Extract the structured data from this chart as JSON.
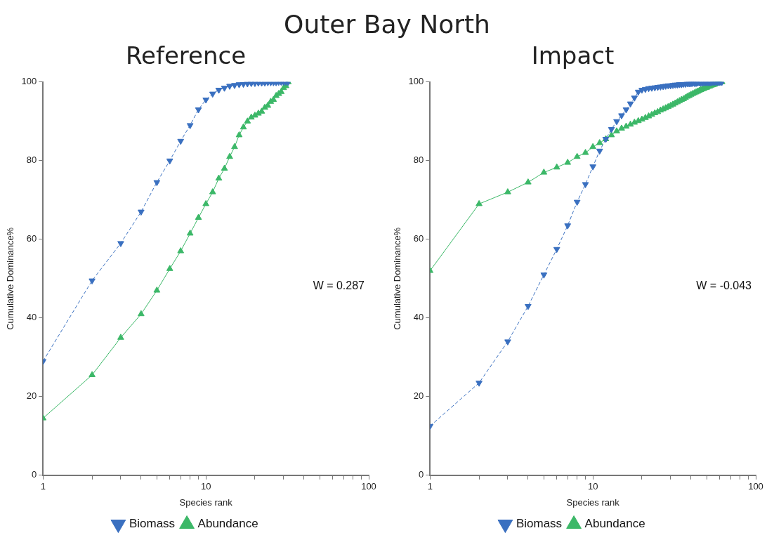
{
  "chart_data": [
    {
      "type": "line",
      "title": "Outer Bay North",
      "subtitle": "Reference",
      "xlabel": "Species rank",
      "ylabel": "Cumulative Dominance%",
      "log": "x",
      "grid": false,
      "legend": "bottom",
      "xlim": [
        1,
        100
      ],
      "xticks": [
        1,
        {
          "value": 2,
          "label": null
        },
        {
          "value": 3,
          "label": null
        },
        {
          "value": 4,
          "label": null
        },
        {
          "value": 5,
          "label": null
        },
        {
          "value": 6,
          "label": null
        },
        {
          "value": 7,
          "label": null
        },
        {
          "value": 8,
          "label": null
        },
        {
          "value": 9,
          "label": null
        },
        10,
        {
          "value": 20,
          "label": null
        },
        {
          "value": 30,
          "label": null
        },
        {
          "value": 40,
          "label": null
        },
        {
          "value": 50,
          "label": null
        },
        {
          "value": 60,
          "label": null
        },
        {
          "value": 70,
          "label": null
        },
        {
          "value": 80,
          "label": null
        },
        {
          "value": 90,
          "label": null
        },
        100
      ],
      "ylim": [
        0,
        100
      ],
      "yticks": [
        0,
        20,
        40,
        60,
        80,
        100
      ],
      "annotations": [
        "W = 0.287"
      ],
      "x": [
        1,
        2,
        3,
        4,
        5,
        6,
        7,
        8,
        9,
        10,
        11,
        12,
        13,
        14,
        15,
        16,
        17,
        18,
        19,
        20,
        21,
        22,
        23,
        24,
        25,
        26,
        27,
        28,
        29,
        30,
        31,
        32
      ],
      "series": [
        {
          "name": "Abundance",
          "color": "#3cb868",
          "marker": "triangle",
          "line_style": "solid",
          "values": [
            14.5,
            25.5,
            35,
            41,
            47,
            52.5,
            57,
            61.5,
            65.5,
            69,
            72,
            75.5,
            78,
            81,
            83.5,
            86.5,
            88.5,
            90,
            91,
            91.5,
            92,
            92.5,
            93.5,
            94,
            95,
            95.5,
            96.5,
            97,
            97.5,
            98.5,
            99,
            100
          ]
        },
        {
          "name": "Biomass",
          "color": "#3a70c0",
          "marker": "triangle_down",
          "line_style": "dashed",
          "values": [
            29,
            49.5,
            59,
            67,
            74.5,
            80,
            85,
            89,
            93,
            95.5,
            97,
            98,
            98.5,
            99,
            99.2,
            99.4,
            99.5,
            99.6,
            99.7,
            99.7,
            99.8,
            99.8,
            99.8,
            99.9,
            99.9,
            99.9,
            99.9,
            100,
            100,
            100,
            100,
            100
          ]
        }
      ]
    },
    {
      "type": "line",
      "subtitle": "Impact",
      "xlabel": "Species rank",
      "ylabel": "Cumulative Dominance%",
      "log": "x",
      "grid": false,
      "legend": "bottom",
      "xlim": [
        1,
        100
      ],
      "xticks": [
        1,
        {
          "value": 2,
          "label": null
        },
        {
          "value": 3,
          "label": null
        },
        {
          "value": 4,
          "label": null
        },
        {
          "value": 5,
          "label": null
        },
        {
          "value": 6,
          "label": null
        },
        {
          "value": 7,
          "label": null
        },
        {
          "value": 8,
          "label": null
        },
        {
          "value": 9,
          "label": null
        },
        10,
        {
          "value": 20,
          "label": null
        },
        {
          "value": 30,
          "label": null
        },
        {
          "value": 40,
          "label": null
        },
        {
          "value": 50,
          "label": null
        },
        {
          "value": 60,
          "label": null
        },
        {
          "value": 70,
          "label": null
        },
        {
          "value": 80,
          "label": null
        },
        {
          "value": 90,
          "label": null
        },
        100
      ],
      "ylim": [
        0,
        100
      ],
      "yticks": [
        0,
        20,
        40,
        60,
        80,
        100
      ],
      "annotations": [
        "W = -0.043"
      ],
      "x": [
        1,
        2,
        3,
        4,
        5,
        6,
        7,
        8,
        9,
        10,
        11,
        12,
        13,
        14,
        15,
        16,
        17,
        18,
        19,
        20,
        21,
        22,
        23,
        24,
        25,
        26,
        27,
        28,
        29,
        30,
        31,
        32,
        33,
        34,
        35,
        36,
        37,
        38,
        39,
        40,
        41,
        42,
        43,
        44,
        45,
        46,
        47,
        48,
        49,
        50,
        51,
        52,
        53,
        54,
        55,
        56,
        57,
        58,
        59,
        60,
        61,
        62
      ],
      "series": [
        {
          "name": "Abundance",
          "color": "#3cb868",
          "marker": "triangle",
          "line_style": "solid",
          "values": [
            52,
            69,
            72,
            74.5,
            77,
            78.3,
            79.5,
            81,
            82,
            83.5,
            84.5,
            85.5,
            86.5,
            87.5,
            88.2,
            88.7,
            89.2,
            89.7,
            90.1,
            90.5,
            90.9,
            91.3,
            91.7,
            92.1,
            92.4,
            92.8,
            93.1,
            93.4,
            93.7,
            94,
            94.3,
            94.6,
            94.9,
            95.2,
            95.5,
            95.7,
            96,
            96.3,
            96.5,
            96.8,
            97,
            97.2,
            97.4,
            97.6,
            97.8,
            98,
            98.2,
            98.3,
            98.5,
            98.6,
            98.8,
            98.9,
            99.1,
            99.2,
            99.3,
            99.4,
            99.6,
            99.7,
            99.8,
            99.9,
            100,
            100
          ]
        },
        {
          "name": "Biomass",
          "color": "#3a70c0",
          "marker": "triangle_down",
          "line_style": "dashed",
          "values": [
            12.5,
            23.5,
            34,
            43,
            51,
            57.5,
            63.5,
            69.5,
            74,
            78.5,
            82.5,
            85.5,
            88,
            90,
            91.5,
            93,
            94.5,
            96,
            97.5,
            98,
            98.2,
            98.4,
            98.5,
            98.6,
            98.7,
            98.8,
            98.9,
            99,
            99.1,
            99.1,
            99.2,
            99.3,
            99.3,
            99.4,
            99.4,
            99.5,
            99.5,
            99.6,
            99.6,
            99.6,
            99.7,
            99.7,
            99.7,
            99.8,
            99.8,
            99.8,
            99.8,
            99.9,
            99.9,
            99.9,
            99.9,
            99.9,
            99.9,
            100,
            100,
            100,
            100,
            100,
            100,
            100,
            100,
            100
          ]
        }
      ]
    }
  ]
}
